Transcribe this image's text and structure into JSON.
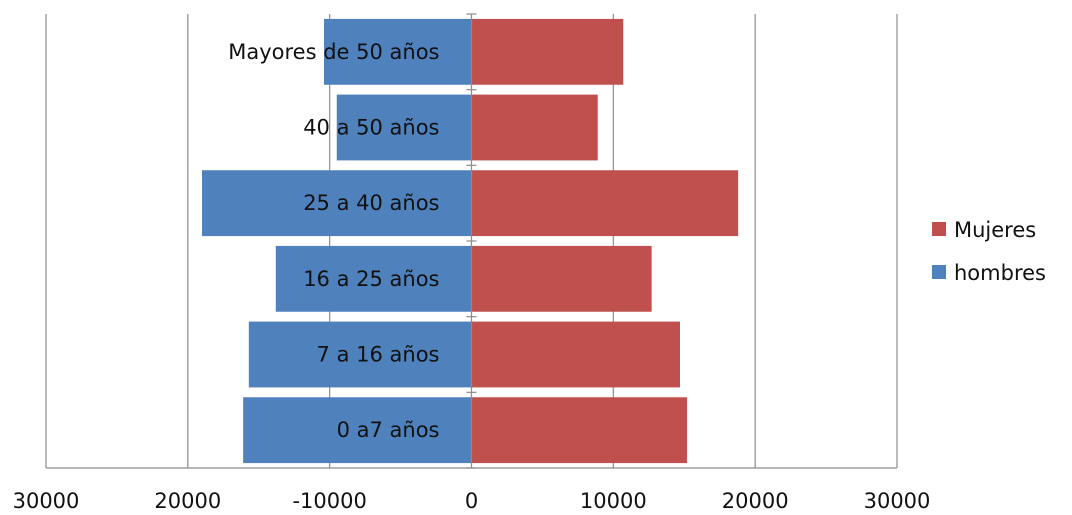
{
  "chart_data": {
    "type": "bar",
    "orientation": "horizontal",
    "stacked": "diverging",
    "categories": [
      "0 a7 años",
      "7 a 16 años",
      "16 a 25  años",
      "25 a 40 años",
      "40  a 50 años",
      "Mayores de 50 años"
    ],
    "series": [
      {
        "name": "Mujeres",
        "color": "#c0504d",
        "values": [
          15200,
          14700,
          12700,
          18800,
          8900,
          10700
        ]
      },
      {
        "name": "hombres",
        "color": "#4f81bd",
        "values": [
          -16100,
          -15700,
          -13800,
          -19000,
          -9500,
          -10400
        ]
      }
    ],
    "xlim": [
      -30000,
      30000
    ],
    "x_ticks": [
      -30000,
      -20000,
      -10000,
      0,
      10000,
      20000,
      30000
    ],
    "x_tick_labels": [
      "30000",
      "20000",
      "-10000",
      "0",
      "10000",
      "20000",
      "30000"
    ],
    "grid": "vertical",
    "legend": "right",
    "title": "",
    "xlabel": "",
    "ylabel": ""
  }
}
